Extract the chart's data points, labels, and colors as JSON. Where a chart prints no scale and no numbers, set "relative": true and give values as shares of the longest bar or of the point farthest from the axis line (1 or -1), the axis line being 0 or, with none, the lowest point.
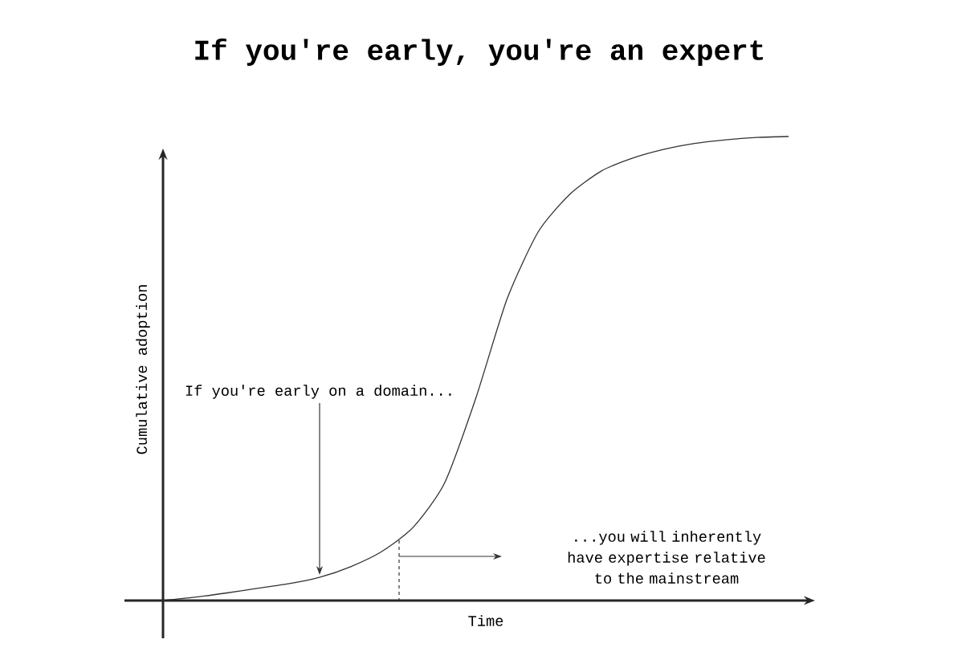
{
  "chart_data": {
    "type": "line",
    "title": "If you're early, you're an expert",
    "xlabel": "Time",
    "ylabel": "Cumulative adoption",
    "relative": true,
    "categories": [
      null,
      null,
      null,
      null,
      null,
      null,
      null,
      null,
      null,
      null,
      null,
      null,
      null,
      null,
      null,
      null,
      null,
      null,
      null,
      null,
      null
    ],
    "series": [
      {
        "color": "#333333",
        "values": [
          0,
          0.007,
          0.016,
          0.026,
          0.036,
          0.05,
          0.073,
          0.106,
          0.158,
          0.253,
          0.436,
          0.65,
          0.795,
          0.875,
          0.925,
          0.953,
          0.972,
          0.985,
          0.993,
          0.998,
          1.0
        ]
      }
    ],
    "annotations": [
      "If you're early on a domain...",
      "...you will inherently have expertise relative to the mainstream"
    ],
    "marker": "none",
    "line_style": "solid"
  }
}
